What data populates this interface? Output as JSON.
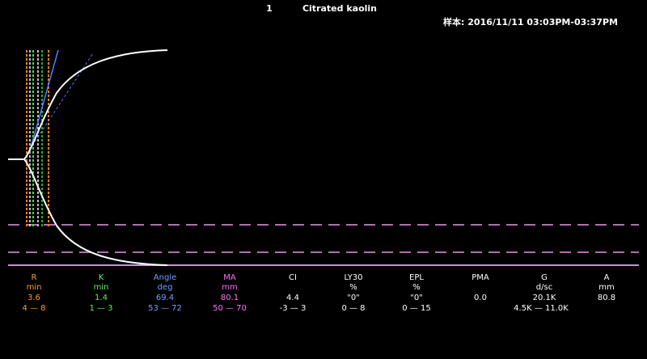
{
  "header": {
    "channel": "1",
    "title": "Citrated kaolin",
    "sample": "样本: 2016/11/11 03:03PM-03:37PM"
  },
  "parameters": [
    {
      "name": "R",
      "unit": "min",
      "value": "3.6",
      "range": "4 — 8"
    },
    {
      "name": "K",
      "unit": "min",
      "value": "1.4",
      "range": "1 — 3"
    },
    {
      "name": "Angle",
      "unit": "deg",
      "value": "69.4",
      "range": "53 — 72"
    },
    {
      "name": "MA",
      "unit": "mm",
      "value": "80.1",
      "range": "50 — 70"
    },
    {
      "name": "CI",
      "value": "4.4",
      "range": "-3 — 3"
    },
    {
      "name": "LY30",
      "unit": "%",
      "value": "\"0\"",
      "range": "0 — 8"
    },
    {
      "name": "EPL",
      "unit": "%",
      "value": "\"0\"",
      "range": "0 — 15"
    },
    {
      "name": "PMA",
      "value": "0.0"
    },
    {
      "name": "G",
      "unit": "d/sc",
      "value": "20.1K",
      "range": "4.5K — 11.0K"
    },
    {
      "name": "A",
      "unit": "mm",
      "value": "80.8"
    }
  ]
}
